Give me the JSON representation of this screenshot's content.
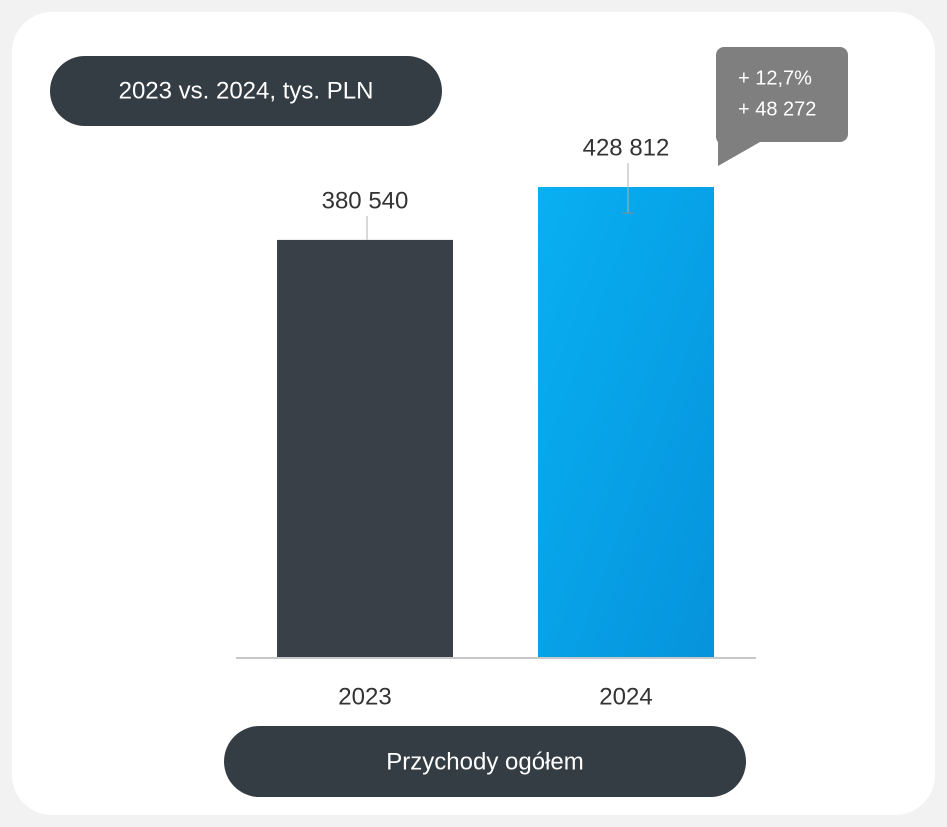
{
  "chart_data": {
    "type": "bar",
    "title": "2023 vs. 2024, tys. PLN",
    "xlabel": "Przychody ogółem",
    "categories": [
      "2023",
      "2024"
    ],
    "values": [
      380540,
      428812
    ],
    "value_labels": [
      "380 540",
      "428 812"
    ],
    "colors": [
      "#394048",
      "#06a6ea"
    ],
    "annotations": [
      "+ 12,7%",
      "+ 48 272"
    ]
  }
}
